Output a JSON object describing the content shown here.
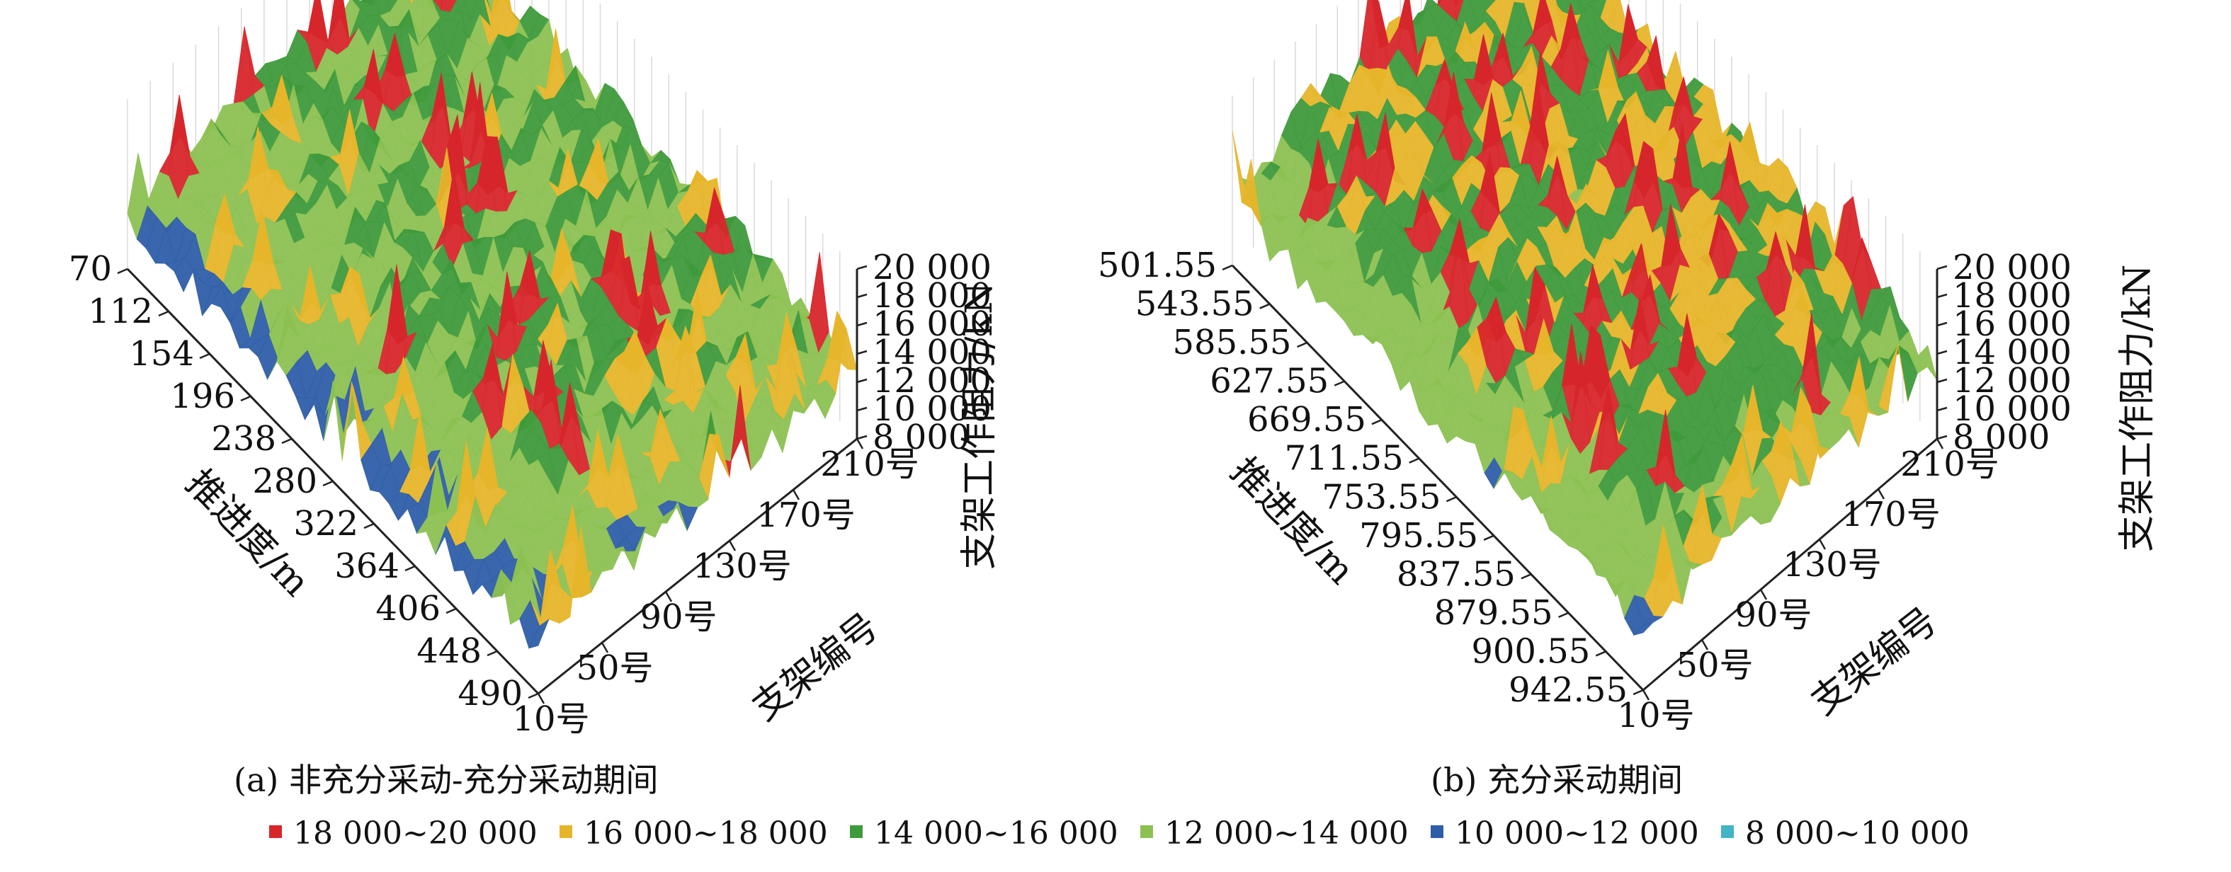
{
  "figure": {
    "legend": [
      {
        "label": "18 000~20 000",
        "color": "#d7262b"
      },
      {
        "label": "16 000~18 000",
        "color": "#e6b52a"
      },
      {
        "label": "14 000~16 000",
        "color": "#3f9a3c"
      },
      {
        "label": "12 000~14 000",
        "color": "#8cc152"
      },
      {
        "label": "10 000~12 000",
        "color": "#2e5ea8"
      },
      {
        "label": "8 000~10 000",
        "color": "#45b3c6"
      }
    ]
  },
  "chart_data": [
    {
      "type": "surface3d",
      "caption": "(a) 非充分采动-充分采动期间",
      "x_label": "推进度/m",
      "x_ticks": [
        "70",
        "112",
        "154",
        "196",
        "238",
        "280",
        "322",
        "364",
        "406",
        "448",
        "490"
      ],
      "y_label": "支架编号",
      "y_ticks": [
        "10号",
        "50号",
        "90号",
        "130号",
        "170号",
        "210号"
      ],
      "z_label": "支架工作阻力/kN",
      "z_ticks": [
        "8 000",
        "10 000",
        "12 000",
        "14 000",
        "16 000",
        "18 000",
        "20 000"
      ],
      "zlim": [
        8000,
        20000
      ],
      "value_range_typical": [
        10000,
        16000
      ],
      "peak_value": 20000
    },
    {
      "type": "surface3d",
      "caption": "(b) 充分采动期间",
      "x_label": "推进度/m",
      "x_ticks": [
        "501.55",
        "543.55",
        "585.55",
        "627.55",
        "669.55",
        "711.55",
        "753.55",
        "795.55",
        "837.55",
        "879.55",
        "900.55",
        "942.55"
      ],
      "y_label": "支架编号",
      "y_ticks": [
        "10号",
        "50号",
        "90号",
        "130号",
        "170号",
        "210号"
      ],
      "z_label": "支架工作阻力/kN",
      "z_ticks": [
        "8 000",
        "10 000",
        "12 000",
        "14 000",
        "16 000",
        "18 000",
        "20 000"
      ],
      "zlim": [
        8000,
        20000
      ],
      "value_range_typical": [
        11000,
        17000
      ],
      "peak_value": 19500
    }
  ]
}
